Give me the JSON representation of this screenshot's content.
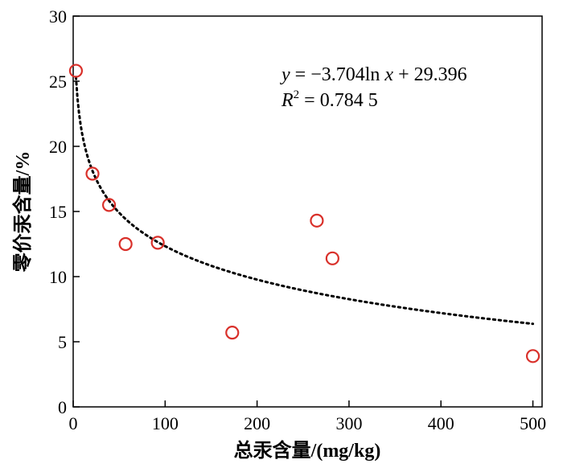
{
  "chart_data": {
    "type": "scatter",
    "title": "",
    "xlabel": "总汞含量/(mg/kg)",
    "ylabel": "零价汞含量/%",
    "xlim": [
      0,
      510
    ],
    "ylim": [
      0,
      30
    ],
    "x_ticks": [
      "0",
      "100",
      "200",
      "300",
      "400",
      "500"
    ],
    "y_ticks": [
      "0",
      "5",
      "10",
      "15",
      "20",
      "25",
      "30"
    ],
    "grid": false,
    "points": [
      {
        "x": 3,
        "y": 25.8
      },
      {
        "x": 21,
        "y": 17.9
      },
      {
        "x": 39,
        "y": 15.5
      },
      {
        "x": 57,
        "y": 12.5
      },
      {
        "x": 92,
        "y": 12.6
      },
      {
        "x": 173,
        "y": 5.7
      },
      {
        "x": 265,
        "y": 14.3
      },
      {
        "x": 282,
        "y": 11.4
      },
      {
        "x": 500,
        "y": 3.9
      }
    ],
    "marker_color": "#d9302a",
    "fit": {
      "type": "logarithmic",
      "a": -3.704,
      "b": 29.396,
      "x_range": [
        3,
        500
      ],
      "line_style": "dotted",
      "equation": {
        "y": "y",
        "eq": " = −3.704ln ",
        "x": "x",
        "rest": " + 29.396"
      },
      "r2": {
        "R": "R",
        "sup": "2",
        "rest": " = 0.784 5"
      }
    }
  }
}
